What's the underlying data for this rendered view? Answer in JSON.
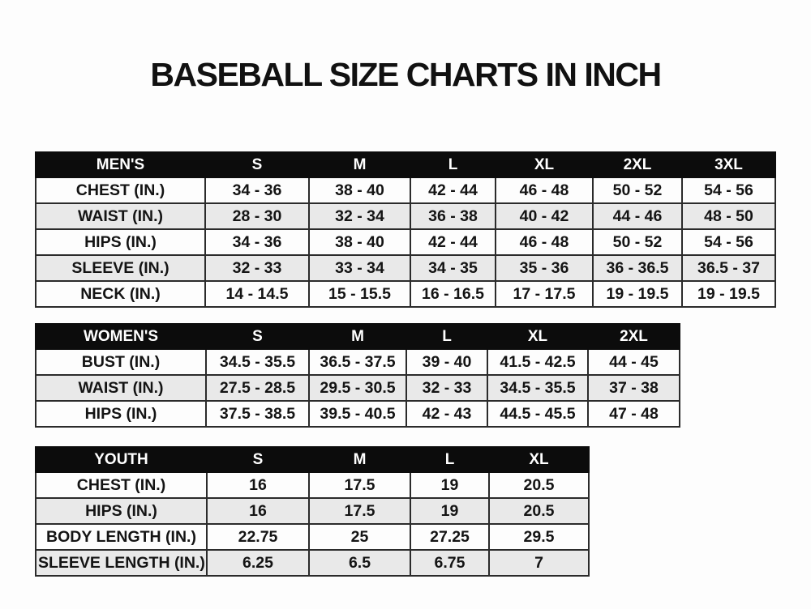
{
  "title": "BASEBALL SIZE CHARTS IN INCH",
  "colors": {
    "header_bg": "#0c0c0c",
    "header_text": "#ffffff",
    "row_bg": "#fdfdfd",
    "row_alt_bg": "#e9e9e9",
    "border": "#2b2b2b",
    "text": "#141414"
  },
  "tables": [
    {
      "title": "MEN'S",
      "header": [
        "MEN'S",
        "S",
        "M",
        "L",
        "XL",
        "2XL",
        "3XL"
      ],
      "rows": [
        [
          "CHEST (IN.)",
          "34 - 36",
          "38 - 40",
          "42 - 44",
          "46 - 48",
          "50 - 52",
          "54 - 56"
        ],
        [
          "WAIST (IN.)",
          "28 - 30",
          "32 - 34",
          "36 - 38",
          "40 - 42",
          "44 - 46",
          "48 - 50"
        ],
        [
          "HIPS (IN.)",
          "34 - 36",
          "38 - 40",
          "42 - 44",
          "46 - 48",
          "50 - 52",
          "54 - 56"
        ],
        [
          "SLEEVE (IN.)",
          "32 - 33",
          "33 - 34",
          "34 - 35",
          "35 - 36",
          "36 - 36.5",
          "36.5 - 37"
        ],
        [
          "NECK (IN.)",
          "14 - 14.5",
          "15 - 15.5",
          "16 - 16.5",
          "17 - 17.5",
          "19 - 19.5",
          "19 - 19.5"
        ]
      ]
    },
    {
      "title": "WOMEN'S",
      "header": [
        "WOMEN'S",
        "S",
        "M",
        "L",
        "XL",
        "2XL"
      ],
      "rows": [
        [
          "BUST (IN.)",
          "34.5 - 35.5",
          "36.5 - 37.5",
          "39 - 40",
          "41.5 - 42.5",
          "44 - 45"
        ],
        [
          "WAIST (IN.)",
          "27.5 - 28.5",
          "29.5 - 30.5",
          "32 - 33",
          "34.5 - 35.5",
          "37 - 38"
        ],
        [
          "HIPS (IN.)",
          "37.5 - 38.5",
          "39.5 - 40.5",
          "42 - 43",
          "44.5 - 45.5",
          "47 - 48"
        ]
      ]
    },
    {
      "title": "YOUTH",
      "header": [
        "YOUTH",
        "S",
        "M",
        "L",
        "XL"
      ],
      "rows": [
        [
          "CHEST (IN.)",
          "16",
          "17.5",
          "19",
          "20.5"
        ],
        [
          "HIPS (IN.)",
          "16",
          "17.5",
          "19",
          "20.5"
        ],
        [
          "BODY LENGTH (IN.)",
          "22.75",
          "25",
          "27.25",
          "29.5"
        ],
        [
          "SLEEVE LENGTH (IN.)",
          "6.25",
          "6.5",
          "6.75",
          "7"
        ]
      ]
    }
  ]
}
